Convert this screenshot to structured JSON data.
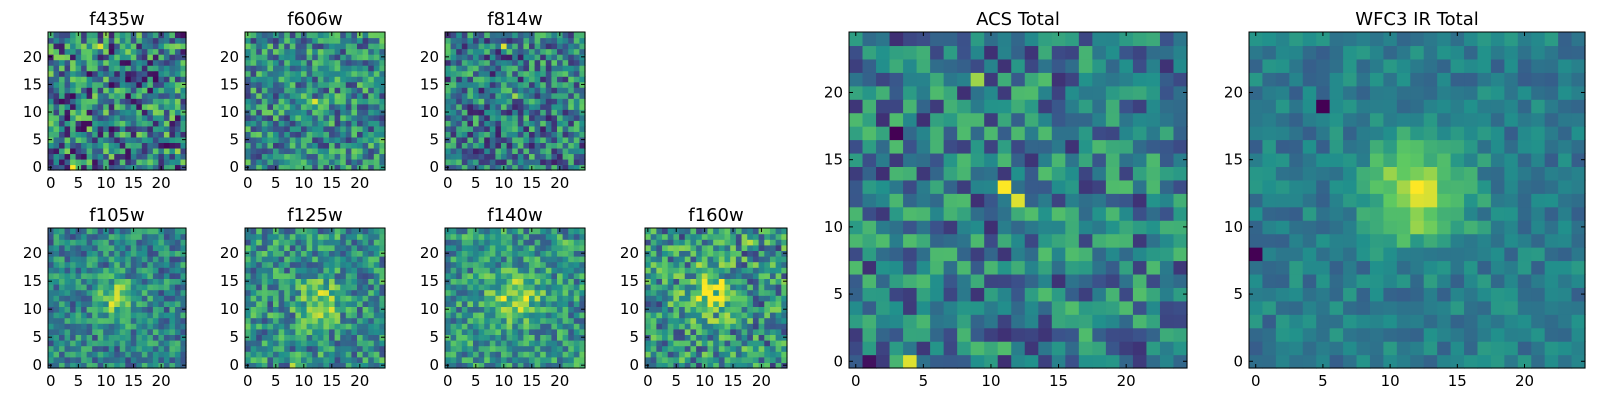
{
  "figure": {
    "colormap": "viridis",
    "colormap_stops": [
      "#440154",
      "#3b528b",
      "#21918c",
      "#5ec962",
      "#fde725"
    ]
  },
  "chart_data": [
    {
      "type": "heatmap",
      "id": "f435w",
      "title": "f435w",
      "grid_size": 25,
      "xlim": [
        -0.5,
        24.5
      ],
      "ylim": [
        -0.5,
        24.5
      ],
      "xticks": [
        0,
        5,
        10,
        15,
        20
      ],
      "yticks": [
        0,
        5,
        10,
        15,
        20
      ],
      "xlabel": "",
      "ylabel": "",
      "bright_spots": [
        {
          "x": 4,
          "y": 0,
          "value": 1.0
        },
        {
          "x": 9,
          "y": 22,
          "value": 0.95
        },
        {
          "x": 23,
          "y": 3,
          "value": 0.85
        },
        {
          "x": 24,
          "y": 1,
          "value": 0.8
        }
      ],
      "noise_level": 0.5,
      "base_level": 0.42,
      "seed": 11
    },
    {
      "type": "heatmap",
      "id": "f606w",
      "title": "f606w",
      "grid_size": 25,
      "xlim": [
        -0.5,
        24.5
      ],
      "ylim": [
        -0.5,
        24.5
      ],
      "xticks": [
        0,
        5,
        10,
        15,
        20
      ],
      "yticks": [
        0,
        5,
        10,
        15,
        20
      ],
      "xlabel": "",
      "ylabel": "",
      "bright_spots": [
        {
          "x": 12,
          "y": 12,
          "value": 0.95
        },
        {
          "x": 11,
          "y": 12,
          "value": 0.75
        }
      ],
      "noise_level": 0.38,
      "base_level": 0.48,
      "seed": 22
    },
    {
      "type": "heatmap",
      "id": "f814w",
      "title": "f814w",
      "grid_size": 25,
      "xlim": [
        -0.5,
        24.5
      ],
      "ylim": [
        -0.5,
        24.5
      ],
      "xticks": [
        0,
        5,
        10,
        15,
        20
      ],
      "yticks": [
        0,
        5,
        10,
        15,
        20
      ],
      "xlabel": "",
      "ylabel": "",
      "bright_spots": [
        {
          "x": 10,
          "y": 22,
          "value": 0.95
        },
        {
          "x": 12,
          "y": 13,
          "value": 0.85
        }
      ],
      "noise_level": 0.42,
      "base_level": 0.42,
      "seed": 33
    },
    {
      "type": "heatmap",
      "id": "f105w",
      "title": "f105w",
      "grid_size": 25,
      "xlim": [
        -0.5,
        24.5
      ],
      "ylim": [
        -0.5,
        24.5
      ],
      "xticks": [
        0,
        5,
        10,
        15,
        20
      ],
      "yticks": [
        0,
        5,
        10,
        15,
        20
      ],
      "xlabel": "",
      "ylabel": "",
      "bright_spots": [
        {
          "x": 12,
          "y": 12,
          "value": 0.95
        },
        {
          "x": 12,
          "y": 11,
          "value": 0.85
        }
      ],
      "source": {
        "x": 12,
        "y": 12,
        "amplitude": 0.35,
        "sigma": 2.5
      },
      "noise_level": 0.3,
      "base_level": 0.45,
      "seed": 44
    },
    {
      "type": "heatmap",
      "id": "f125w",
      "title": "f125w",
      "grid_size": 25,
      "xlim": [
        -0.5,
        24.5
      ],
      "ylim": [
        -0.5,
        24.5
      ],
      "xticks": [
        0,
        5,
        10,
        15,
        20
      ],
      "yticks": [
        0,
        5,
        10,
        15,
        20
      ],
      "xlabel": "",
      "ylabel": "",
      "bright_spots": [
        {
          "x": 14,
          "y": 13,
          "value": 0.95
        },
        {
          "x": 8,
          "y": 0,
          "value": 0.9
        }
      ],
      "source": {
        "x": 13,
        "y": 12,
        "amplitude": 0.35,
        "sigma": 2.5
      },
      "noise_level": 0.35,
      "base_level": 0.5,
      "seed": 55
    },
    {
      "type": "heatmap",
      "id": "f140w",
      "title": "f140w",
      "grid_size": 25,
      "xlim": [
        -0.5,
        24.5
      ],
      "ylim": [
        -0.5,
        24.5
      ],
      "xticks": [
        0,
        5,
        10,
        15,
        20
      ],
      "yticks": [
        0,
        5,
        10,
        15,
        20
      ],
      "xlabel": "",
      "ylabel": "",
      "bright_spots": [
        {
          "x": 11,
          "y": 13,
          "value": 0.85
        },
        {
          "x": 21,
          "y": 22,
          "value": 0.8
        }
      ],
      "source": {
        "x": 12,
        "y": 12,
        "amplitude": 0.3,
        "sigma": 3
      },
      "noise_level": 0.32,
      "base_level": 0.52,
      "seed": 66
    },
    {
      "type": "heatmap",
      "id": "f160w",
      "title": "f160w",
      "grid_size": 25,
      "xlim": [
        -0.5,
        24.5
      ],
      "ylim": [
        -0.5,
        24.5
      ],
      "xticks": [
        0,
        5,
        10,
        15,
        20
      ],
      "yticks": [
        0,
        5,
        10,
        15,
        20
      ],
      "xlabel": "",
      "ylabel": "",
      "bright_spots": [
        {
          "x": 11,
          "y": 14,
          "value": 0.95
        },
        {
          "x": 18,
          "y": 22,
          "value": 0.9
        },
        {
          "x": 10,
          "y": 9,
          "value": 0.85
        }
      ],
      "source": {
        "x": 11,
        "y": 13,
        "amplitude": 0.35,
        "sigma": 3
      },
      "noise_level": 0.4,
      "base_level": 0.5,
      "seed": 77
    },
    {
      "type": "heatmap",
      "id": "acs_total",
      "title": "ACS Total",
      "grid_size": 25,
      "xlim": [
        -0.5,
        24.5
      ],
      "ylim": [
        -0.5,
        24.5
      ],
      "xticks": [
        0,
        5,
        10,
        15,
        20
      ],
      "yticks": [
        0,
        5,
        10,
        15,
        20
      ],
      "xlabel": "",
      "ylabel": "",
      "bright_spots": [
        {
          "x": 11,
          "y": 13,
          "value": 1.0
        },
        {
          "x": 12,
          "y": 12,
          "value": 0.95
        },
        {
          "x": 4,
          "y": 0,
          "value": 0.95
        },
        {
          "x": 9,
          "y": 21,
          "value": 0.85
        }
      ],
      "dark_spots": [
        {
          "x": 3,
          "y": 17,
          "value": 0.0
        },
        {
          "x": 1,
          "y": 0,
          "value": 0.05
        }
      ],
      "noise_level": 0.35,
      "base_level": 0.42,
      "seed": 88
    },
    {
      "type": "heatmap",
      "id": "wfc3_ir_total",
      "title": "WFC3 IR Total",
      "grid_size": 25,
      "xlim": [
        -0.5,
        24.5
      ],
      "ylim": [
        -0.5,
        24.5
      ],
      "xticks": [
        0,
        5,
        10,
        15,
        20
      ],
      "yticks": [
        0,
        5,
        10,
        15,
        20
      ],
      "xlabel": "",
      "ylabel": "",
      "bright_spots": [
        {
          "x": 12,
          "y": 13,
          "value": 1.0
        },
        {
          "x": 12,
          "y": 12,
          "value": 0.95
        }
      ],
      "dark_spots": [
        {
          "x": 5,
          "y": 19,
          "value": 0.0
        },
        {
          "x": 0,
          "y": 8,
          "value": 0.0
        }
      ],
      "source": {
        "x": 12,
        "y": 12.5,
        "amplitude": 0.5,
        "sigma": 2.6
      },
      "noise_level": 0.16,
      "base_level": 0.42,
      "seed": 99
    }
  ]
}
